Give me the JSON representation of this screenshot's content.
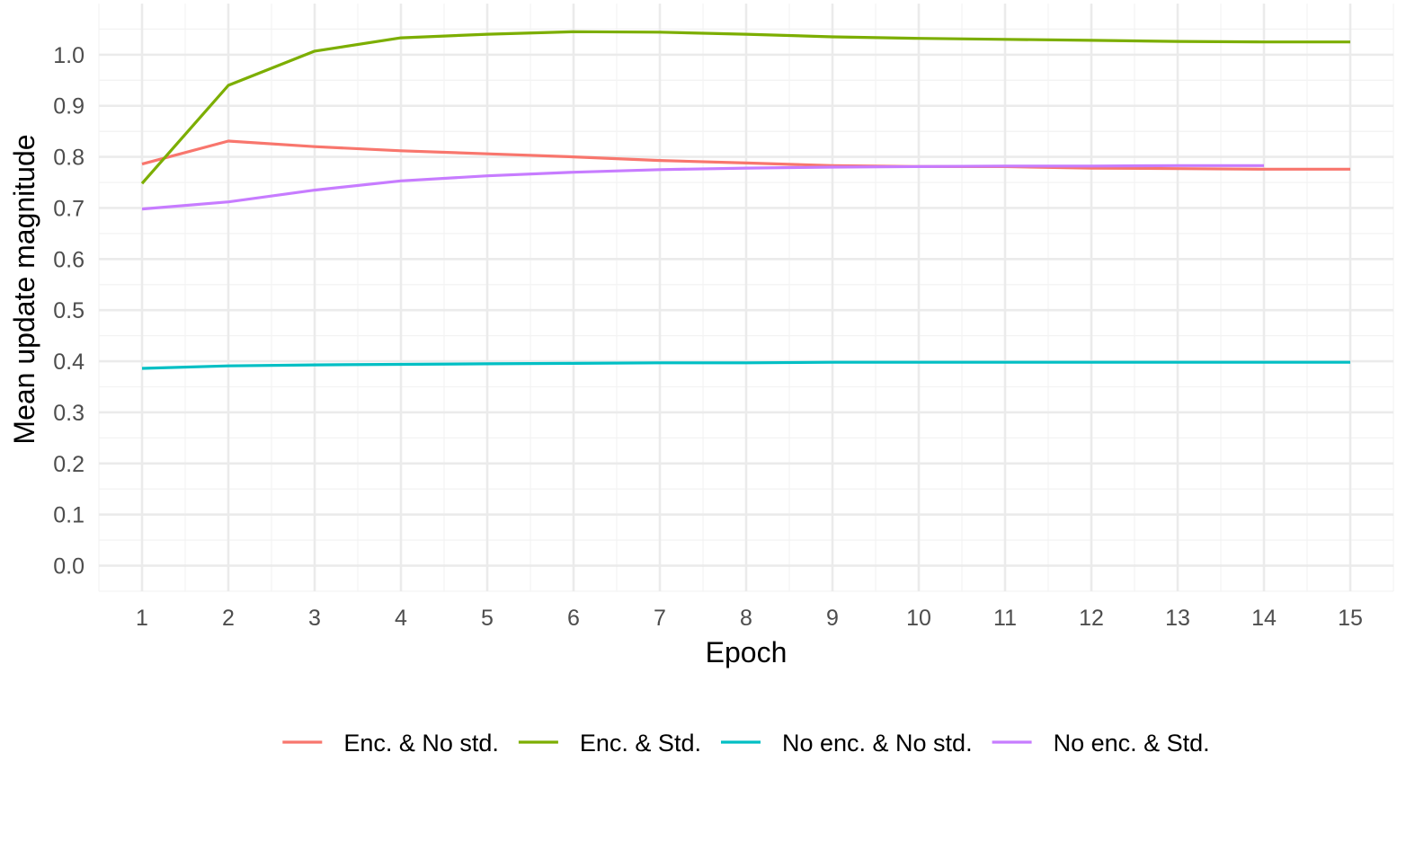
{
  "chart_data": {
    "type": "line",
    "title": "",
    "xlabel": "Epoch",
    "ylabel": "Mean update magnitude",
    "xlim": [
      0.5,
      15.5
    ],
    "ylim": [
      -0.05,
      1.1
    ],
    "x_ticks": [
      1,
      2,
      3,
      4,
      5,
      6,
      7,
      8,
      9,
      10,
      11,
      12,
      13,
      14,
      15
    ],
    "x_tick_labels": [
      "1",
      "2",
      "3",
      "4",
      "5",
      "6",
      "7",
      "8",
      "9",
      "10",
      "11",
      "12",
      "13",
      "14",
      "15"
    ],
    "y_ticks": [
      0.0,
      0.1,
      0.2,
      0.3,
      0.4,
      0.5,
      0.6,
      0.7,
      0.8,
      0.9,
      1.0
    ],
    "y_tick_labels": [
      "0.0",
      "0.1",
      "0.2",
      "0.3",
      "0.4",
      "0.5",
      "0.6",
      "0.7",
      "0.8",
      "0.9",
      "1.0"
    ],
    "grid": true,
    "legend_position": "bottom",
    "series": [
      {
        "name": "Enc. & No std.",
        "color": "#F8766D",
        "x": [
          1,
          2,
          3,
          4,
          5,
          6,
          7,
          8,
          9,
          10,
          11,
          12,
          13,
          14,
          15
        ],
        "values": [
          0.786,
          0.831,
          0.82,
          0.812,
          0.806,
          0.8,
          0.793,
          0.788,
          0.783,
          0.781,
          0.781,
          0.778,
          0.777,
          0.776,
          0.776
        ]
      },
      {
        "name": "Enc. & Std.",
        "color": "#7CAE00",
        "x": [
          1,
          2,
          3,
          4,
          5,
          6,
          7,
          8,
          9,
          10,
          11,
          12,
          13,
          14,
          15
        ],
        "values": [
          0.748,
          0.94,
          1.007,
          1.033,
          1.04,
          1.045,
          1.044,
          1.04,
          1.035,
          1.032,
          1.03,
          1.028,
          1.026,
          1.025,
          1.025
        ]
      },
      {
        "name": "No enc. & No std.",
        "color": "#00BFC4",
        "x": [
          1,
          2,
          3,
          4,
          5,
          6,
          7,
          8,
          9,
          10,
          11,
          12,
          13,
          14,
          15
        ],
        "values": [
          0.386,
          0.391,
          0.393,
          0.394,
          0.395,
          0.396,
          0.397,
          0.397,
          0.398,
          0.398,
          0.398,
          0.398,
          0.398,
          0.398,
          0.398
        ]
      },
      {
        "name": "No enc. & Std.",
        "color": "#C77CFF",
        "x": [
          1,
          2,
          3,
          4,
          5,
          6,
          7,
          8,
          9,
          10,
          11,
          12,
          13,
          14
        ],
        "values": [
          0.698,
          0.712,
          0.735,
          0.753,
          0.763,
          0.77,
          0.775,
          0.778,
          0.78,
          0.781,
          0.782,
          0.782,
          0.783,
          0.783
        ]
      }
    ]
  }
}
